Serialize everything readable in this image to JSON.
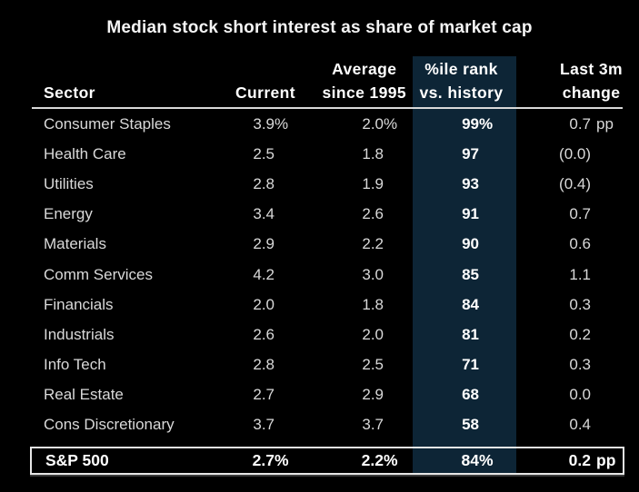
{
  "title": "Median stock short interest as share of market cap",
  "colors": {
    "background": "#000000",
    "highlight_band": "#0d2536",
    "header_text": "#ffffff",
    "data_text": "#d9d9d9",
    "header_rule": "#d9d9d9",
    "footer_border": "#e6e6e6"
  },
  "header": {
    "sector": "Sector",
    "current": "Current",
    "average_top": "Average",
    "average_bottom": "since 1995",
    "rank_top": "%ile rank",
    "rank_bottom": "vs. history",
    "change_top": "Last 3m",
    "change_bottom": "change"
  },
  "rows": [
    {
      "sector": "Consumer Staples",
      "current": "3.9",
      "current_sfx": "%",
      "average": "2.0",
      "average_sfx": "%",
      "rank": "99",
      "rank_sfx": "%",
      "change": "0.7",
      "change_sfx": "pp"
    },
    {
      "sector": "Health Care",
      "current": "2.5",
      "current_sfx": "",
      "average": "1.8",
      "average_sfx": "",
      "rank": "97",
      "rank_sfx": "",
      "change": "(0.0)",
      "change_sfx": ""
    },
    {
      "sector": "Utilities",
      "current": "2.8",
      "current_sfx": "",
      "average": "1.9",
      "average_sfx": "",
      "rank": "93",
      "rank_sfx": "",
      "change": "(0.4)",
      "change_sfx": ""
    },
    {
      "sector": "Energy",
      "current": "3.4",
      "current_sfx": "",
      "average": "2.6",
      "average_sfx": "",
      "rank": "91",
      "rank_sfx": "",
      "change": "0.7",
      "change_sfx": ""
    },
    {
      "sector": "Materials",
      "current": "2.9",
      "current_sfx": "",
      "average": "2.2",
      "average_sfx": "",
      "rank": "90",
      "rank_sfx": "",
      "change": "0.6",
      "change_sfx": ""
    },
    {
      "sector": "Comm Services",
      "current": "4.2",
      "current_sfx": "",
      "average": "3.0",
      "average_sfx": "",
      "rank": "85",
      "rank_sfx": "",
      "change": "1.1",
      "change_sfx": ""
    },
    {
      "sector": "Financials",
      "current": "2.0",
      "current_sfx": "",
      "average": "1.8",
      "average_sfx": "",
      "rank": "84",
      "rank_sfx": "",
      "change": "0.3",
      "change_sfx": ""
    },
    {
      "sector": "Industrials",
      "current": "2.6",
      "current_sfx": "",
      "average": "2.0",
      "average_sfx": "",
      "rank": "81",
      "rank_sfx": "",
      "change": "0.2",
      "change_sfx": ""
    },
    {
      "sector": "Info Tech",
      "current": "2.8",
      "current_sfx": "",
      "average": "2.5",
      "average_sfx": "",
      "rank": "71",
      "rank_sfx": "",
      "change": "0.3",
      "change_sfx": ""
    },
    {
      "sector": "Real Estate",
      "current": "2.7",
      "current_sfx": "",
      "average": "2.9",
      "average_sfx": "",
      "rank": "68",
      "rank_sfx": "",
      "change": "0.0",
      "change_sfx": ""
    },
    {
      "sector": "Cons Discretionary",
      "current": "3.7",
      "current_sfx": "",
      "average": "3.7",
      "average_sfx": "",
      "rank": "58",
      "rank_sfx": "",
      "change": "0.4",
      "change_sfx": ""
    }
  ],
  "footer": {
    "sector": "S&P 500",
    "current": "2.7",
    "current_sfx": "%",
    "average": "2.2",
    "average_sfx": "%",
    "rank": "84",
    "rank_sfx": "%",
    "change": "0.2",
    "change_sfx": "pp"
  },
  "chart_data": {
    "type": "table",
    "title": "Median stock short interest as share of market cap",
    "columns": [
      "Sector",
      "Current",
      "Average since 1995",
      "%ile rank vs. history",
      "Last 3m change"
    ],
    "rows": [
      [
        "Consumer Staples",
        "3.9%",
        "2.0%",
        "99%",
        "0.7 pp"
      ],
      [
        "Health Care",
        "2.5",
        "1.8",
        "97",
        "(0.0)"
      ],
      [
        "Utilities",
        "2.8",
        "1.9",
        "93",
        "(0.4)"
      ],
      [
        "Energy",
        "3.4",
        "2.6",
        "91",
        "0.7"
      ],
      [
        "Materials",
        "2.9",
        "2.2",
        "90",
        "0.6"
      ],
      [
        "Comm Services",
        "4.2",
        "3.0",
        "85",
        "1.1"
      ],
      [
        "Financials",
        "2.0",
        "1.8",
        "84",
        "0.3"
      ],
      [
        "Industrials",
        "2.6",
        "2.0",
        "81",
        "0.2"
      ],
      [
        "Info Tech",
        "2.8",
        "2.5",
        "71",
        "0.3"
      ],
      [
        "Real Estate",
        "2.7",
        "2.9",
        "68",
        "0.0"
      ],
      [
        "Cons Discretionary",
        "3.7",
        "3.7",
        "58",
        "0.4"
      ]
    ],
    "footer_row": [
      "S&P 500",
      "2.7%",
      "2.2%",
      "84%",
      "0.2 pp"
    ],
    "highlighted_column": "%ile rank vs. history",
    "layout": {
      "grid": false,
      "header_rule": true,
      "footer_boxed": true
    }
  }
}
